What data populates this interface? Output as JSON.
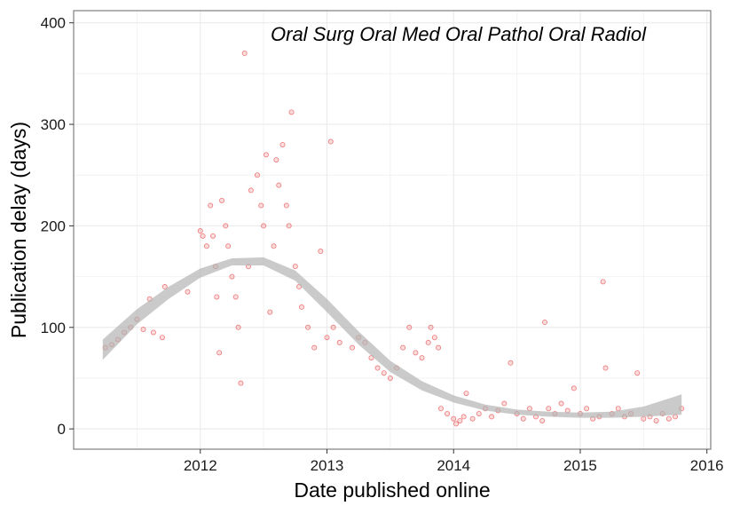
{
  "chart_data": {
    "type": "scatter",
    "annotation": "Oral Surg Oral Med Oral Pathol Oral Radiol",
    "xlabel": "Date published online",
    "ylabel": "Publication delay (days)",
    "xlim": [
      2011.0,
      2016.03
    ],
    "ylim": [
      -20,
      412
    ],
    "x_ticks": [
      2012,
      2013,
      2014,
      2015,
      2016
    ],
    "x_tick_labels": [
      "2012",
      "2013",
      "2014",
      "2015",
      "2016"
    ],
    "y_ticks": [
      0,
      100,
      200,
      300,
      400
    ],
    "y_tick_labels": [
      "0",
      "100",
      "200",
      "300",
      "400"
    ],
    "grid": true,
    "point_color": "#e31a1c",
    "smooth_color": "#b3b3b3",
    "points_approx": [
      [
        2011.25,
        80
      ],
      [
        2011.3,
        83
      ],
      [
        2011.35,
        88
      ],
      [
        2011.4,
        95
      ],
      [
        2011.45,
        100
      ],
      [
        2011.5,
        108
      ],
      [
        2011.55,
        98
      ],
      [
        2011.6,
        128
      ],
      [
        2011.63,
        95
      ],
      [
        2011.7,
        90
      ],
      [
        2011.72,
        140
      ],
      [
        2011.9,
        135
      ],
      [
        2012.0,
        195
      ],
      [
        2012.02,
        190
      ],
      [
        2012.05,
        180
      ],
      [
        2012.08,
        220
      ],
      [
        2012.1,
        190
      ],
      [
        2012.12,
        160
      ],
      [
        2012.13,
        130
      ],
      [
        2012.15,
        75
      ],
      [
        2012.17,
        225
      ],
      [
        2012.2,
        200
      ],
      [
        2012.22,
        180
      ],
      [
        2012.25,
        150
      ],
      [
        2012.28,
        130
      ],
      [
        2012.3,
        100
      ],
      [
        2012.32,
        45
      ],
      [
        2012.35,
        370
      ],
      [
        2012.38,
        160
      ],
      [
        2012.4,
        235
      ],
      [
        2012.45,
        250
      ],
      [
        2012.48,
        220
      ],
      [
        2012.5,
        200
      ],
      [
        2012.52,
        270
      ],
      [
        2012.55,
        115
      ],
      [
        2012.58,
        180
      ],
      [
        2012.6,
        265
      ],
      [
        2012.62,
        240
      ],
      [
        2012.65,
        280
      ],
      [
        2012.68,
        220
      ],
      [
        2012.7,
        200
      ],
      [
        2012.72,
        312
      ],
      [
        2012.75,
        160
      ],
      [
        2012.78,
        140
      ],
      [
        2012.8,
        120
      ],
      [
        2012.85,
        100
      ],
      [
        2012.9,
        80
      ],
      [
        2012.95,
        175
      ],
      [
        2013.0,
        90
      ],
      [
        2013.03,
        283
      ],
      [
        2013.05,
        100
      ],
      [
        2013.1,
        85
      ],
      [
        2013.2,
        80
      ],
      [
        2013.25,
        90
      ],
      [
        2013.3,
        85
      ],
      [
        2013.35,
        70
      ],
      [
        2013.4,
        60
      ],
      [
        2013.45,
        55
      ],
      [
        2013.5,
        50
      ],
      [
        2013.55,
        60
      ],
      [
        2013.6,
        80
      ],
      [
        2013.65,
        100
      ],
      [
        2013.7,
        75
      ],
      [
        2013.75,
        70
      ],
      [
        2013.8,
        85
      ],
      [
        2013.82,
        100
      ],
      [
        2013.85,
        90
      ],
      [
        2013.88,
        80
      ],
      [
        2013.9,
        20
      ],
      [
        2013.95,
        15
      ],
      [
        2014.0,
        10
      ],
      [
        2014.02,
        5
      ],
      [
        2014.05,
        8
      ],
      [
        2014.08,
        12
      ],
      [
        2014.1,
        35
      ],
      [
        2014.15,
        10
      ],
      [
        2014.2,
        15
      ],
      [
        2014.25,
        20
      ],
      [
        2014.3,
        12
      ],
      [
        2014.35,
        18
      ],
      [
        2014.4,
        25
      ],
      [
        2014.45,
        65
      ],
      [
        2014.5,
        15
      ],
      [
        2014.55,
        10
      ],
      [
        2014.6,
        20
      ],
      [
        2014.65,
        12
      ],
      [
        2014.7,
        8
      ],
      [
        2014.72,
        105
      ],
      [
        2014.75,
        20
      ],
      [
        2014.8,
        15
      ],
      [
        2014.85,
        25
      ],
      [
        2014.9,
        18
      ],
      [
        2014.95,
        40
      ],
      [
        2015.0,
        15
      ],
      [
        2015.05,
        20
      ],
      [
        2015.1,
        10
      ],
      [
        2015.15,
        12
      ],
      [
        2015.18,
        145
      ],
      [
        2015.2,
        60
      ],
      [
        2015.25,
        15
      ],
      [
        2015.3,
        20
      ],
      [
        2015.35,
        12
      ],
      [
        2015.4,
        15
      ],
      [
        2015.45,
        55
      ],
      [
        2015.5,
        10
      ],
      [
        2015.55,
        12
      ],
      [
        2015.6,
        8
      ],
      [
        2015.65,
        15
      ],
      [
        2015.7,
        10
      ],
      [
        2015.75,
        12
      ],
      [
        2015.8,
        20
      ]
    ],
    "smooth_band": [
      {
        "x": 2011.23,
        "lo": 68,
        "hi": 88
      },
      {
        "x": 2011.5,
        "lo": 103,
        "hi": 118
      },
      {
        "x": 2011.75,
        "lo": 128,
        "hi": 140
      },
      {
        "x": 2012.0,
        "lo": 149,
        "hi": 158
      },
      {
        "x": 2012.25,
        "lo": 161,
        "hi": 168
      },
      {
        "x": 2012.5,
        "lo": 161,
        "hi": 169
      },
      {
        "x": 2012.75,
        "lo": 146,
        "hi": 156
      },
      {
        "x": 2013.0,
        "lo": 115,
        "hi": 128
      },
      {
        "x": 2013.25,
        "lo": 83,
        "hi": 96
      },
      {
        "x": 2013.5,
        "lo": 56,
        "hi": 67
      },
      {
        "x": 2013.75,
        "lo": 38,
        "hi": 47
      },
      {
        "x": 2014.0,
        "lo": 26,
        "hi": 33
      },
      {
        "x": 2014.25,
        "lo": 18,
        "hi": 24
      },
      {
        "x": 2014.5,
        "lo": 14,
        "hi": 19
      },
      {
        "x": 2014.75,
        "lo": 12,
        "hi": 17
      },
      {
        "x": 2015.0,
        "lo": 11,
        "hi": 16
      },
      {
        "x": 2015.25,
        "lo": 11,
        "hi": 17
      },
      {
        "x": 2015.5,
        "lo": 12,
        "hi": 22
      },
      {
        "x": 2015.8,
        "lo": 14,
        "hi": 34
      }
    ]
  }
}
